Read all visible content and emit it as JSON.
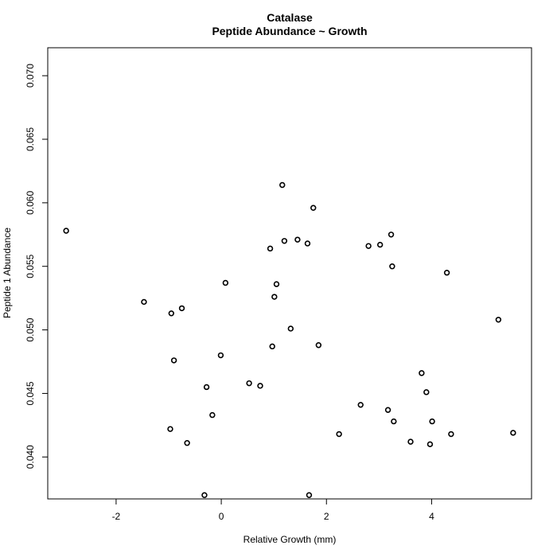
{
  "chart_data": {
    "type": "scatter",
    "title": "Catalase",
    "subtitle": "Peptide Abundance ~ Growth",
    "xlabel": "Relative Growth (mm)",
    "ylabel": "Peptide 1 Abundance",
    "xlim": [
      -3.3,
      5.9
    ],
    "ylim": [
      0.0367,
      0.0722
    ],
    "x_ticks": [
      -2,
      0,
      2,
      4
    ],
    "y_ticks": [
      0.04,
      0.045,
      0.05,
      0.055,
      0.06,
      0.065,
      0.07
    ],
    "x_tick_labels": [
      "-2",
      "0",
      "2",
      "4"
    ],
    "y_tick_labels": [
      "0.040",
      "0.045",
      "0.050",
      "0.055",
      "0.060",
      "0.065",
      "0.070"
    ],
    "grid": false,
    "legend": "none",
    "series": [
      {
        "x": [
          -2.95,
          -1.47,
          -0.95,
          -0.75,
          -0.9,
          -0.97,
          -0.28,
          -0.65,
          -0.17,
          -0.32,
          0.08,
          -0.01,
          0.53,
          0.74,
          0.93,
          0.97,
          1.01,
          1.05,
          1.16,
          1.2,
          1.32,
          1.45,
          1.64,
          1.75,
          1.85,
          1.67,
          2.24,
          2.65,
          2.8,
          3.02,
          3.17,
          3.23,
          3.25,
          3.28,
          3.6,
          3.81,
          3.9,
          3.97,
          4.01,
          4.29,
          4.37,
          5.27,
          5.55
        ],
        "y": [
          0.0578,
          0.0522,
          0.0513,
          0.0517,
          0.0476,
          0.0422,
          0.0455,
          0.0411,
          0.0433,
          0.037,
          0.0537,
          0.048,
          0.0458,
          0.0456,
          0.0564,
          0.0487,
          0.0526,
          0.0536,
          0.0614,
          0.057,
          0.0501,
          0.0571,
          0.0568,
          0.0596,
          0.0488,
          0.037,
          0.0418,
          0.0441,
          0.0566,
          0.0567,
          0.0437,
          0.0575,
          0.055,
          0.0428,
          0.0412,
          0.0466,
          0.0451,
          0.041,
          0.0428,
          0.0545,
          0.0418,
          0.0508,
          0.0419
        ]
      }
    ]
  }
}
